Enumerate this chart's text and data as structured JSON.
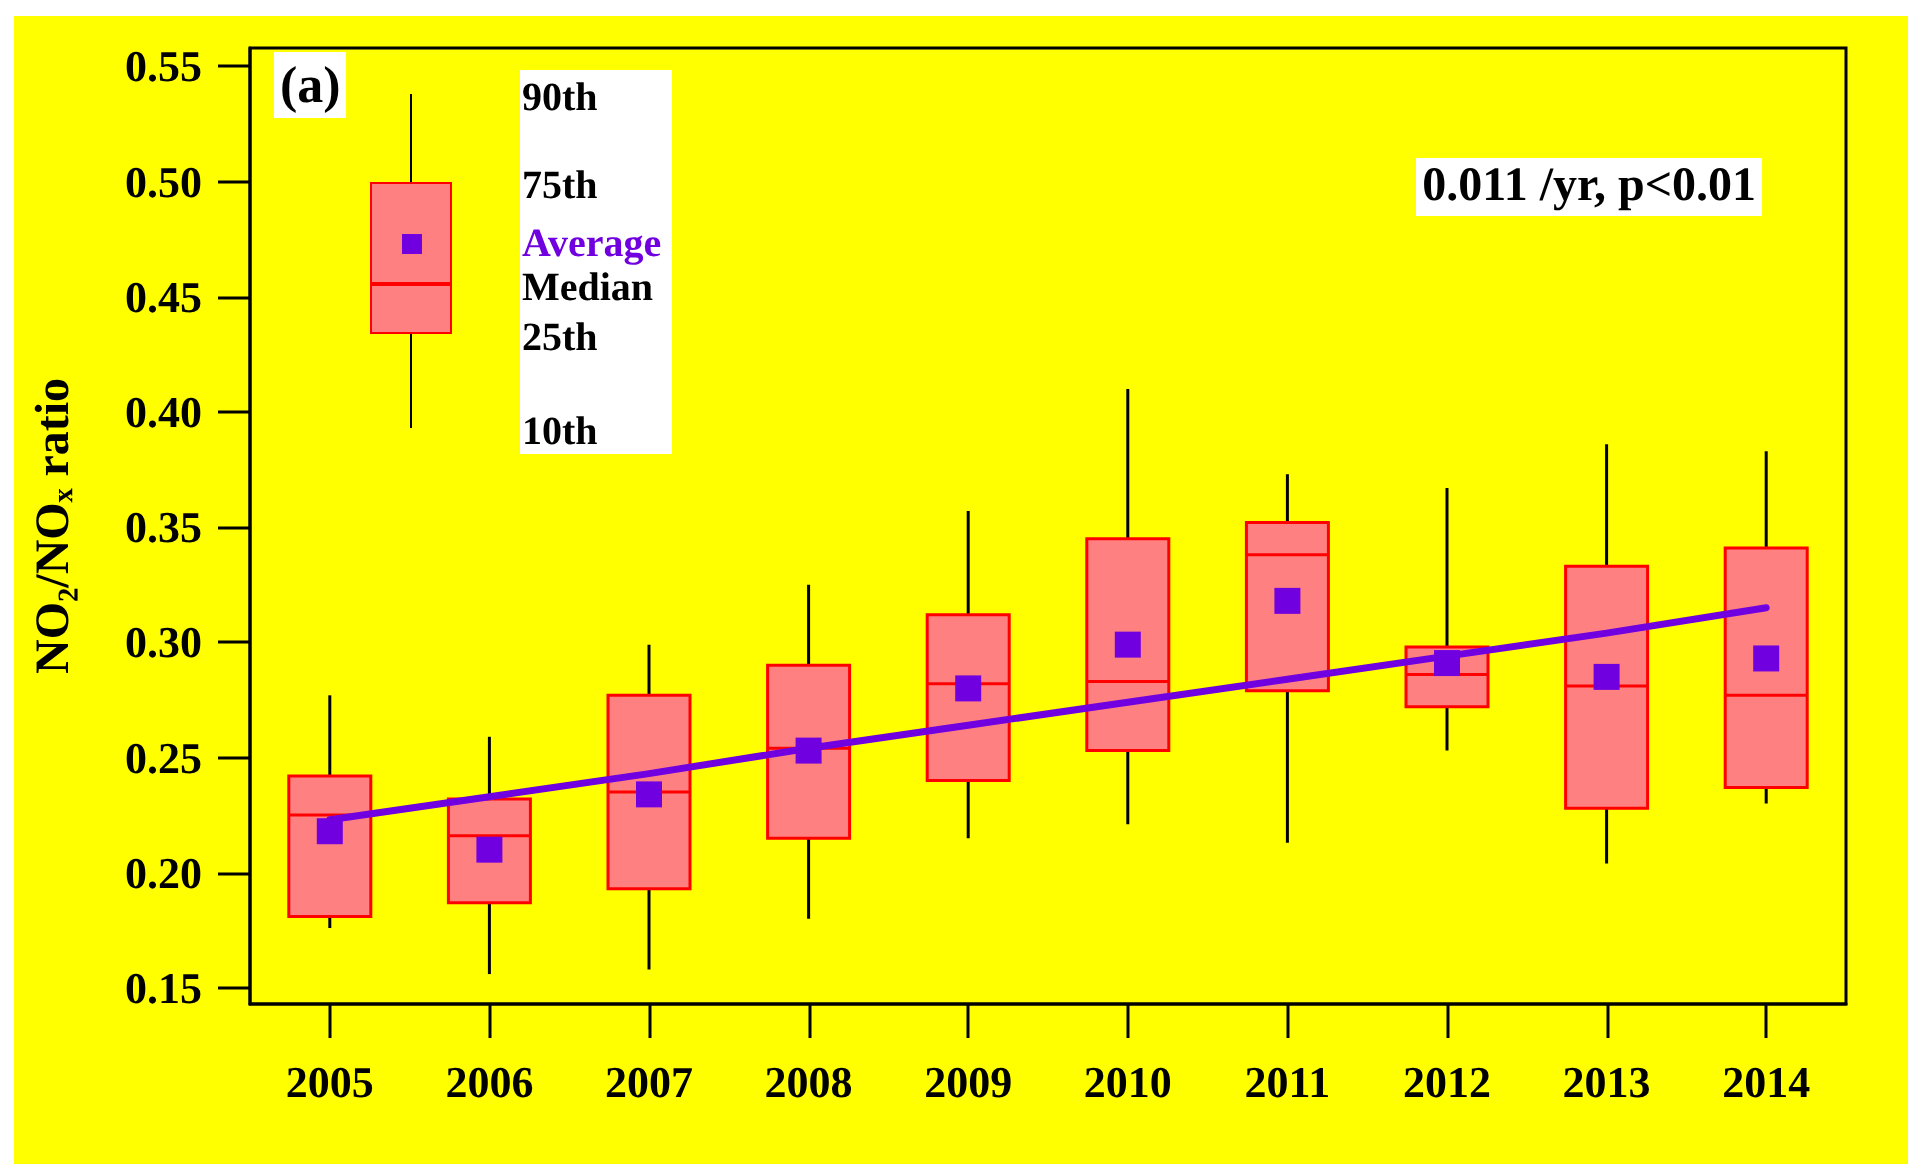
{
  "chart_data": {
    "type": "box",
    "ylabel": "NO₂/NOₓ ratio",
    "annotations": [
      "(a)",
      "0.011 /yr, p<0.01",
      "90th",
      "75th",
      "Average",
      "Median",
      "25th",
      "10th"
    ],
    "categories": [
      "2005",
      "2006",
      "2007",
      "2008",
      "2009",
      "2010",
      "2011",
      "2012",
      "2013",
      "2014"
    ],
    "series": [
      {
        "color": "#ff8080",
        "boxes": [
          {
            "low": 0.176,
            "q1": 0.181,
            "median": 0.225,
            "q3": 0.242,
            "high": 0.277,
            "mean": 0.218
          },
          {
            "low": 0.156,
            "q1": 0.187,
            "median": 0.216,
            "q3": 0.232,
            "high": 0.259,
            "mean": 0.21
          },
          {
            "low": 0.158,
            "q1": 0.193,
            "median": 0.235,
            "q3": 0.277,
            "high": 0.299,
            "mean": 0.234
          },
          {
            "low": 0.18,
            "q1": 0.215,
            "median": 0.254,
            "q3": 0.29,
            "high": 0.325,
            "mean": 0.253
          },
          {
            "low": 0.215,
            "q1": 0.24,
            "median": 0.282,
            "q3": 0.312,
            "high": 0.357,
            "mean": 0.28
          },
          {
            "low": 0.221,
            "q1": 0.253,
            "median": 0.283,
            "q3": 0.345,
            "high": 0.41,
            "mean": 0.299
          },
          {
            "low": 0.213,
            "q1": 0.279,
            "median": 0.338,
            "q3": 0.352,
            "high": 0.373,
            "mean": 0.318
          },
          {
            "low": 0.253,
            "q1": 0.272,
            "median": 0.286,
            "q3": 0.298,
            "high": 0.367,
            "mean": 0.291
          },
          {
            "low": 0.204,
            "q1": 0.228,
            "median": 0.281,
            "q3": 0.333,
            "high": 0.386,
            "mean": 0.285
          },
          {
            "low": 0.23,
            "q1": 0.237,
            "median": 0.277,
            "q3": 0.341,
            "high": 0.383,
            "mean": 0.293
          }
        ]
      },
      {
        "type": "line",
        "color": "#7000e0",
        "values": [
          0.223,
          0.233,
          0.243,
          0.254,
          0.264,
          0.274,
          0.284,
          0.294,
          0.304,
          0.315
        ],
        "marker": "none",
        "line_style": "solid"
      }
    ],
    "ylim": [
      0.143,
      0.558
    ],
    "yticks": [
      0.15,
      {
        "value": 0.2,
        "label": "0.20"
      },
      0.25,
      {
        "value": 0.3,
        "label": "0.30"
      },
      0.35,
      {
        "value": 0.4,
        "label": "0.40"
      },
      0.45,
      {
        "value": 0.5,
        "label": "0.50"
      },
      0.55
    ]
  }
}
